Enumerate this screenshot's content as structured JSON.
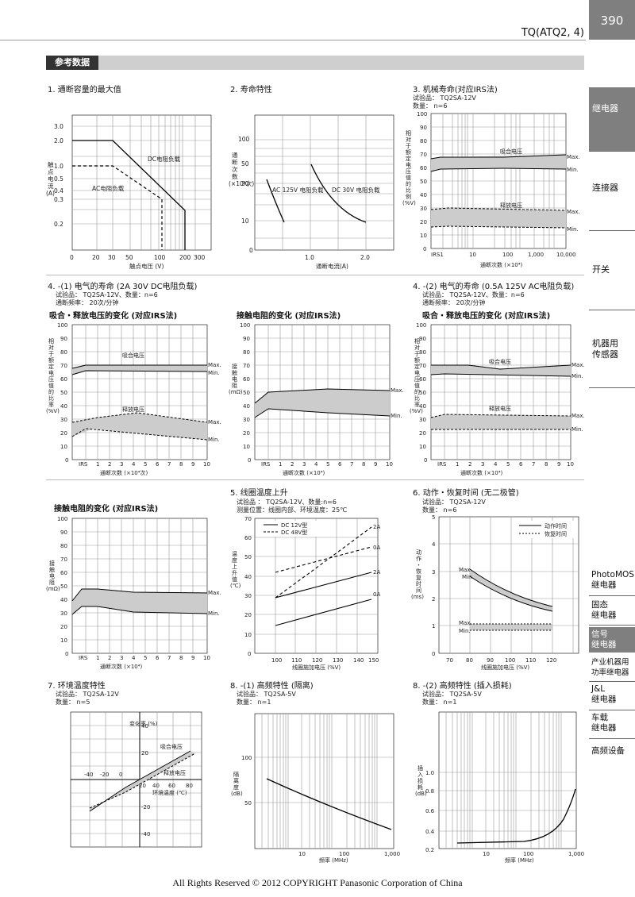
{
  "header": {
    "page_number": "390",
    "model": "TQ(ATQ2, 4)",
    "section": "参考数据"
  },
  "sidebar": {
    "items": [
      "继电器",
      "连接器",
      "开关",
      "机器用\n传感器"
    ],
    "sub_items": [
      "PhotoMOS\n继电器",
      "固态\n继电器",
      "信号\n继电器",
      "产业机器用\n功率继电器",
      "J&L\n继电器",
      "车载\n继电器",
      "高频设备"
    ]
  },
  "charts": {
    "c1": {
      "title": "1. 通断容量的最大值",
      "ylabel": "触点电流\n(A)",
      "xlabel": "触点电压 (V)",
      "dc": "DC电阻负载",
      "ac": "AC电阻负载"
    },
    "c2": {
      "title": "2. 寿命特性",
      "ylabel": "通断次数\n(×10⁴次)",
      "xlabel": "通断电流(A)",
      "ac": "AC 125V 电阻负载",
      "dc": "DC 30V 电阻负载"
    },
    "c3": {
      "title": "3. 机械寿命(对应IRS法)",
      "sample": "试验品： TQ2SA-12V",
      "qty": "数量： n=6",
      "ylabel": "相对于额定电压值的比例(%V)",
      "xlabel": "通断次数 (×10⁴)",
      "pick": "吸合电压",
      "drop": "释放电压"
    },
    "c41": {
      "title": "4. -(1) 电气的寿命 (2A 30V DC电阻负载)",
      "sample": "试验品： TQ2SA-12V、数量：n=6",
      "freq": "通断频率： 20次/分钟",
      "sub1": "吸合・释放电压的变化 (对应IRS法)",
      "sub2": "接触电阻的变化 (对应IRS法)",
      "ylabel": "相对于额定电压值的比率(%V)",
      "ylabel2": "接触电阻\n(mΩ)",
      "xlabel": "通断次数 (×10⁴次)",
      "xlabel2": "通断次数 (×10⁴)"
    },
    "c42": {
      "title": "4. -(2) 电气的寿命 (0.5A 125V AC电阻负载)",
      "sample": "试验品： TQ2SA-12V、数量：n=6",
      "freq": "通断频率： 20次/分钟",
      "sub1": "吸合・释放电压的变化 (对应IRS法)",
      "sub2": "接触电阻的变化 (对应IRS法)",
      "ylabel": "相对于额定电压值的比率(%V)",
      "ylabel2": "接触电阻\n(mΩ)",
      "xlabel": "通断次数 (×10⁴)"
    },
    "c5": {
      "title": "5. 线圈温度上升",
      "sample": "试验品 ： TQ2SA-12V、数量:n=6",
      "cond": "测量位置：线圈内部、环境温度：25℃",
      "ylabel": "温度上升值\n(℃)",
      "xlabel": "线圈施加电压 (%V)",
      "s1": "DC 12V型",
      "s2": "DC 48V型"
    },
    "c6": {
      "title": "6. 动作・恢复时间 (无二极管)",
      "sample": "试验品： TQ2SA-12V",
      "qty": "数量： n=6",
      "ylabel": "动作・恢复时间\n(ms)",
      "xlabel": "线圈施加电压 (%V)",
      "op": "动作时间",
      "rel": "恢复时间"
    },
    "c7": {
      "title": "7. 环境温度特性",
      "sample": "试验品： TQ2SA-12V",
      "qty": "数量： n=5",
      "ylabel": "变化率\n(%)",
      "xlabel": "环境温度 (℃)",
      "pick": "吸合电压",
      "drop": "释放电压"
    },
    "c81": {
      "title": "8. -(1) 高频特性 (隔离)",
      "sample": "试验品： TQ2SA-5V",
      "qty": "数量： n=1",
      "ylabel": "隔离度\n(dB)",
      "xlabel": "频率 (MHz)"
    },
    "c82": {
      "title": "8. -(2) 高频特性 (插入损耗)",
      "sample": "试验品： TQ2SA-5V",
      "qty": "数量： n=1",
      "ylabel": "插入损耗\n(dB)",
      "xlabel": "频率 (MHz)"
    }
  },
  "common": {
    "max": "Max.",
    "min": "Min."
  },
  "footer": "All Rights Reserved © 2012 COPYRIGHT Panasonic Corporation of China"
}
